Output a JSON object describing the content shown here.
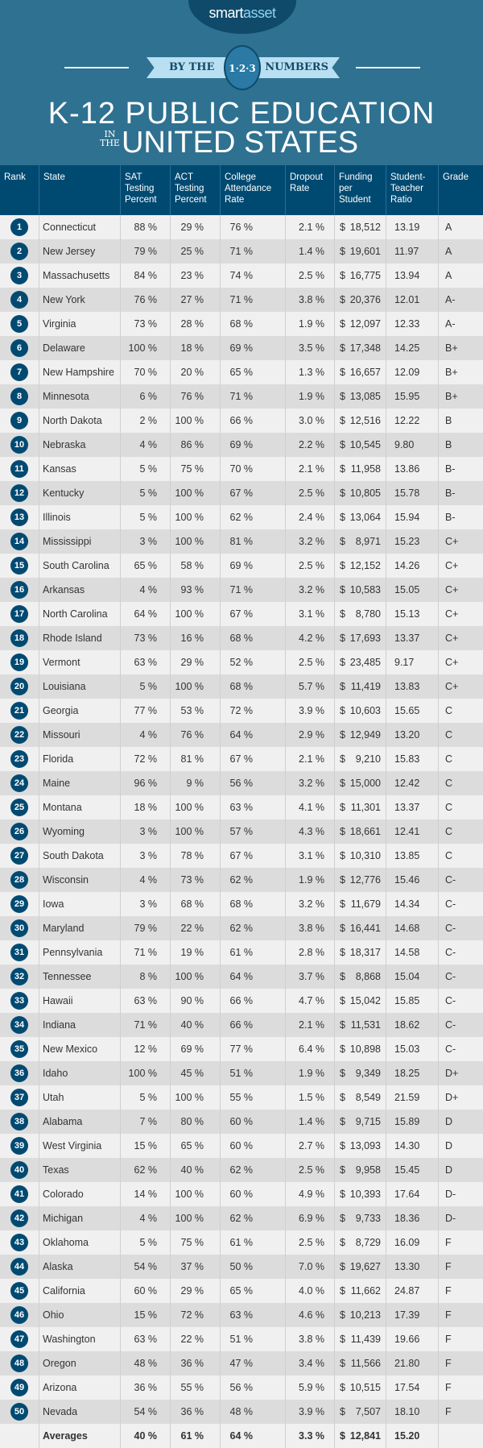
{
  "header": {
    "logo_smart": "smart",
    "logo_asset": "asset",
    "ribbon_left": "BY THE",
    "ribbon_badge": "1·2·3",
    "ribbon_right": "NUMBERS",
    "title_line1": "K-12 PUBLIC EDUCATION",
    "title_in": "IN",
    "title_the": "THE",
    "title_line2": "UNITED STATES"
  },
  "columns": [
    "Rank",
    "State",
    "SAT Testing Percent",
    "ACT Testing Percent",
    "College Attendance Rate",
    "Dropout Rate",
    "Funding per Student",
    "Student-Teacher Ratio",
    "Grade"
  ],
  "rows": [
    [
      "1",
      "Connecticut",
      "88 %",
      "29 %",
      "76 %",
      "2.1 %",
      "18,512",
      "13.19",
      "A"
    ],
    [
      "2",
      "New Jersey",
      "79 %",
      "25 %",
      "71 %",
      "1.4 %",
      "19,601",
      "11.97",
      "A"
    ],
    [
      "3",
      "Massachusetts",
      "84 %",
      "23 %",
      "74 %",
      "2.5 %",
      "16,775",
      "13.94",
      "A"
    ],
    [
      "4",
      "New York",
      "76 %",
      "27 %",
      "71 %",
      "3.8 %",
      "20,376",
      "12.01",
      "A-"
    ],
    [
      "5",
      "Virginia",
      "73 %",
      "28 %",
      "68 %",
      "1.9 %",
      "12,097",
      "12.33",
      "A-"
    ],
    [
      "6",
      "Delaware",
      "100 %",
      "18 %",
      "69 %",
      "3.5 %",
      "17,348",
      "14.25",
      "B+"
    ],
    [
      "7",
      "New Hampshire",
      "70 %",
      "20 %",
      "65 %",
      "1.3 %",
      "16,657",
      "12.09",
      "B+"
    ],
    [
      "8",
      "Minnesota",
      "6 %",
      "76 %",
      "71 %",
      "1.9 %",
      "13,085",
      "15.95",
      "B+"
    ],
    [
      "9",
      "North Dakota",
      "2 %",
      "100 %",
      "66 %",
      "3.0 %",
      "12,516",
      "12.22",
      "B"
    ],
    [
      "10",
      "Nebraska",
      "4 %",
      "86 %",
      "69 %",
      "2.2 %",
      "10,545",
      "9.80",
      "B"
    ],
    [
      "11",
      "Kansas",
      "5 %",
      "75 %",
      "70 %",
      "2.1 %",
      "11,958",
      "13.86",
      "B-"
    ],
    [
      "12",
      "Kentucky",
      "5 %",
      "100 %",
      "67 %",
      "2.5 %",
      "10,805",
      "15.78",
      "B-"
    ],
    [
      "13",
      "Illinois",
      "5 %",
      "100 %",
      "62 %",
      "2.4 %",
      "13,064",
      "15.94",
      "B-"
    ],
    [
      "14",
      "Mississippi",
      "3 %",
      "100 %",
      "81 %",
      "3.2 %",
      "8,971",
      "15.23",
      "C+"
    ],
    [
      "15",
      "South Carolina",
      "65 %",
      "58 %",
      "69 %",
      "2.5 %",
      "12,152",
      "14.26",
      "C+"
    ],
    [
      "16",
      "Arkansas",
      "4 %",
      "93 %",
      "71 %",
      "3.2 %",
      "10,583",
      "15.05",
      "C+"
    ],
    [
      "17",
      "North Carolina",
      "64 %",
      "100 %",
      "67 %",
      "3.1 %",
      "8,780",
      "15.13",
      "C+"
    ],
    [
      "18",
      "Rhode Island",
      "73 %",
      "16 %",
      "68 %",
      "4.2 %",
      "17,693",
      "13.37",
      "C+"
    ],
    [
      "19",
      "Vermont",
      "63 %",
      "29 %",
      "52 %",
      "2.5 %",
      "23,485",
      "9.17",
      "C+"
    ],
    [
      "20",
      "Louisiana",
      "5 %",
      "100 %",
      "68 %",
      "5.7 %",
      "11,419",
      "13.83",
      "C+"
    ],
    [
      "21",
      "Georgia",
      "77 %",
      "53 %",
      "72 %",
      "3.9 %",
      "10,603",
      "15.65",
      "C"
    ],
    [
      "22",
      "Missouri",
      "4 %",
      "76 %",
      "64 %",
      "2.9 %",
      "12,949",
      "13.20",
      "C"
    ],
    [
      "23",
      "Florida",
      "72 %",
      "81 %",
      "67 %",
      "2.1 %",
      "9,210",
      "15.83",
      "C"
    ],
    [
      "24",
      "Maine",
      "96 %",
      "9 %",
      "56 %",
      "3.2 %",
      "15,000",
      "12.42",
      "C"
    ],
    [
      "25",
      "Montana",
      "18 %",
      "100 %",
      "63 %",
      "4.1 %",
      "11,301",
      "13.37",
      "C"
    ],
    [
      "26",
      "Wyoming",
      "3 %",
      "100 %",
      "57 %",
      "4.3 %",
      "18,661",
      "12.41",
      "C"
    ],
    [
      "27",
      "South Dakota",
      "3 %",
      "78 %",
      "67 %",
      "3.1 %",
      "10,310",
      "13.85",
      "C"
    ],
    [
      "28",
      "Wisconsin",
      "4 %",
      "73 %",
      "62 %",
      "1.9 %",
      "12,776",
      "15.46",
      "C-"
    ],
    [
      "29",
      "Iowa",
      "3 %",
      "68 %",
      "68 %",
      "3.2 %",
      "11,679",
      "14.34",
      "C-"
    ],
    [
      "30",
      "Maryland",
      "79 %",
      "22 %",
      "62 %",
      "3.8 %",
      "16,441",
      "14.68",
      "C-"
    ],
    [
      "31",
      "Pennsylvania",
      "71 %",
      "19 %",
      "61 %",
      "2.8 %",
      "18,317",
      "14.58",
      "C-"
    ],
    [
      "32",
      "Tennessee",
      "8 %",
      "100 %",
      "64 %",
      "3.7 %",
      "8,868",
      "15.04",
      "C-"
    ],
    [
      "33",
      "Hawaii",
      "63 %",
      "90 %",
      "66 %",
      "4.7 %",
      "15,042",
      "15.85",
      "C-"
    ],
    [
      "34",
      "Indiana",
      "71 %",
      "40 %",
      "66 %",
      "2.1 %",
      "11,531",
      "18.62",
      "C-"
    ],
    [
      "35",
      "New Mexico",
      "12 %",
      "69 %",
      "77 %",
      "6.4 %",
      "10,898",
      "15.03",
      "C-"
    ],
    [
      "36",
      "Idaho",
      "100 %",
      "45 %",
      "51 %",
      "1.9 %",
      "9,349",
      "18.25",
      "D+"
    ],
    [
      "37",
      "Utah",
      "5 %",
      "100 %",
      "55 %",
      "1.5 %",
      "8,549",
      "21.59",
      "D+"
    ],
    [
      "38",
      "Alabama",
      "7 %",
      "80 %",
      "60 %",
      "1.4 %",
      "9,715",
      "15.89",
      "D"
    ],
    [
      "39",
      "West Virginia",
      "15 %",
      "65 %",
      "60 %",
      "2.7 %",
      "13,093",
      "14.30",
      "D"
    ],
    [
      "40",
      "Texas",
      "62 %",
      "40 %",
      "62 %",
      "2.5 %",
      "9,958",
      "15.45",
      "D"
    ],
    [
      "41",
      "Colorado",
      "14 %",
      "100 %",
      "60 %",
      "4.9 %",
      "10,393",
      "17.64",
      "D-"
    ],
    [
      "42",
      "Michigan",
      "4 %",
      "100 %",
      "62 %",
      "6.9 %",
      "9,733",
      "18.36",
      "D-"
    ],
    [
      "43",
      "Oklahoma",
      "5 %",
      "75 %",
      "61 %",
      "2.5 %",
      "8,729",
      "16.09",
      "F"
    ],
    [
      "44",
      "Alaska",
      "54 %",
      "37 %",
      "50 %",
      "7.0 %",
      "19,627",
      "13.30",
      "F"
    ],
    [
      "45",
      "California",
      "60 %",
      "29 %",
      "65 %",
      "4.0 %",
      "11,662",
      "24.87",
      "F"
    ],
    [
      "46",
      "Ohio",
      "15 %",
      "72 %",
      "63 %",
      "4.6 %",
      "10,213",
      "17.39",
      "F"
    ],
    [
      "47",
      "Washington",
      "63 %",
      "22 %",
      "51 %",
      "3.8 %",
      "11,439",
      "19.66",
      "F"
    ],
    [
      "48",
      "Oregon",
      "48 %",
      "36 %",
      "47 %",
      "3.4 %",
      "11,566",
      "21.80",
      "F"
    ],
    [
      "49",
      "Arizona",
      "36 %",
      "55 %",
      "56 %",
      "5.9 %",
      "10,515",
      "17.54",
      "F"
    ],
    [
      "50",
      "Nevada",
      "54 %",
      "36 %",
      "48 %",
      "3.9 %",
      "7,507",
      "18.10",
      "F"
    ]
  ],
  "currency_symbol": "$",
  "averages": {
    "label": "Averages",
    "sat": "40 %",
    "act": "61 %",
    "college": "64 %",
    "dropout": "3.3 %",
    "funding": "12,841",
    "ratio": "15.20"
  },
  "colors": {
    "header_bg": "#2f7190",
    "table_header": "#004a72",
    "row_light": "#f0f0f0",
    "row_dark": "#dcdcdc"
  }
}
